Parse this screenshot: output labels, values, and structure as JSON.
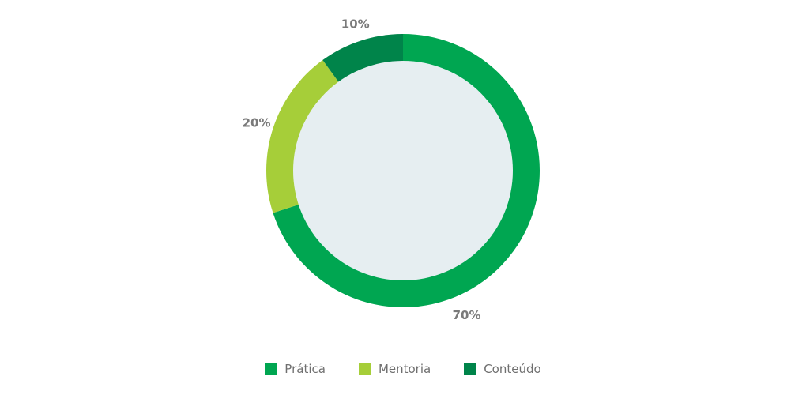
{
  "chart_data": {
    "type": "pie",
    "style": "donut",
    "categories": [
      "Prática",
      "Mentoria",
      "Conteúdo"
    ],
    "values": [
      70,
      20,
      10
    ],
    "labels": [
      "70%",
      "20%",
      "10%"
    ],
    "colors": [
      "#00a651",
      "#a6ce39",
      "#00844a"
    ],
    "center_color": "#e6eef1",
    "legend_position": "bottom",
    "start": "top",
    "direction": "clockwise"
  }
}
